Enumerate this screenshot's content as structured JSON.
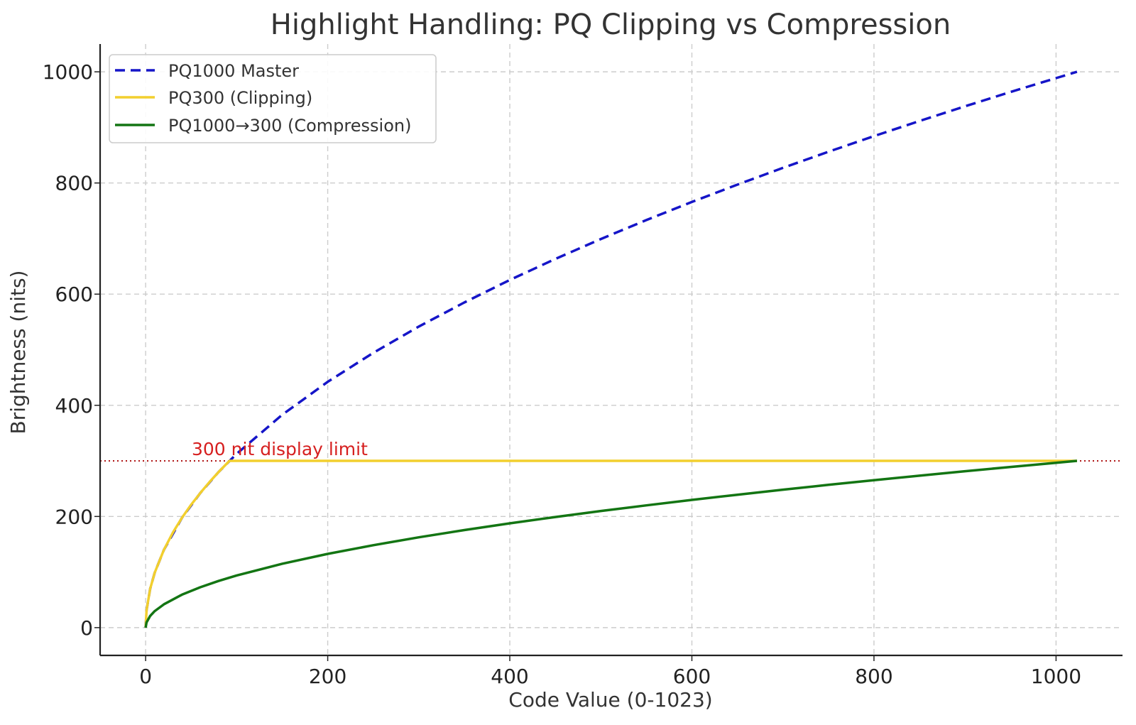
{
  "chart_data": {
    "type": "line",
    "title": "Highlight Handling: PQ Clipping vs Compression",
    "xlabel": "Code Value (0-1023)",
    "ylabel": "Brightness (nits)",
    "xlim": [
      -50,
      1073
    ],
    "ylim": [
      -50,
      1050
    ],
    "xticks": [
      0,
      200,
      400,
      600,
      800,
      1000
    ],
    "yticks": [
      0,
      200,
      400,
      600,
      800,
      1000
    ],
    "xtick_labels": [
      "0",
      "200",
      "400",
      "600",
      "800",
      "1000"
    ],
    "ytick_labels": [
      "0",
      "200",
      "400",
      "600",
      "800",
      "1000"
    ],
    "grid": true,
    "legend_position": "top-left",
    "series": [
      {
        "name": "PQ1000 Master",
        "color": "#1515c8",
        "dash": "dashed",
        "x": [
          0,
          1,
          5,
          10,
          20,
          40,
          60,
          80,
          100,
          150,
          200,
          250,
          300,
          350,
          400,
          450,
          500,
          550,
          600,
          650,
          700,
          750,
          800,
          850,
          900,
          950,
          1000,
          1023
        ],
        "y": [
          0,
          31.3,
          69.9,
          98.9,
          139.8,
          197.8,
          242.2,
          279.7,
          312.7,
          383,
          442.2,
          494.4,
          541.6,
          585,
          625.4,
          663.3,
          699.2,
          733.3,
          765.9,
          797.1,
          827.2,
          856.2,
          884.3,
          911.5,
          937.9,
          963.7,
          988.7,
          1000
        ]
      },
      {
        "name": "PQ300 (Clipping)",
        "color": "#f2cf2e",
        "dash": "solid",
        "x": [
          0,
          1,
          5,
          10,
          20,
          30,
          40,
          50,
          60,
          70,
          80,
          92.07,
          200,
          400,
          600,
          800,
          1000,
          1023
        ],
        "y": [
          0,
          31.3,
          69.9,
          98.9,
          139.8,
          171.3,
          197.8,
          221.1,
          242.2,
          261.6,
          279.7,
          300,
          300,
          300,
          300,
          300,
          300,
          300
        ]
      },
      {
        "name": "PQ1000→300 (Compression)",
        "color": "#137513",
        "dash": "solid",
        "x": [
          0,
          1,
          5,
          10,
          20,
          40,
          60,
          80,
          100,
          150,
          200,
          250,
          300,
          350,
          400,
          450,
          500,
          550,
          600,
          650,
          700,
          750,
          800,
          850,
          900,
          950,
          1000,
          1023
        ],
        "y": [
          0,
          9.4,
          21,
          29.7,
          41.9,
          59.3,
          72.7,
          83.9,
          93.8,
          114.9,
          132.7,
          148.3,
          162.5,
          175.5,
          187.6,
          199,
          209.8,
          220,
          229.8,
          239.1,
          248.2,
          256.9,
          265.3,
          273.4,
          281.4,
          289.1,
          296.6,
          300
        ]
      }
    ],
    "reference_line": {
      "y": 300,
      "color": "#b21c1c",
      "style": "dotted",
      "label": "300 nit display limit"
    }
  }
}
